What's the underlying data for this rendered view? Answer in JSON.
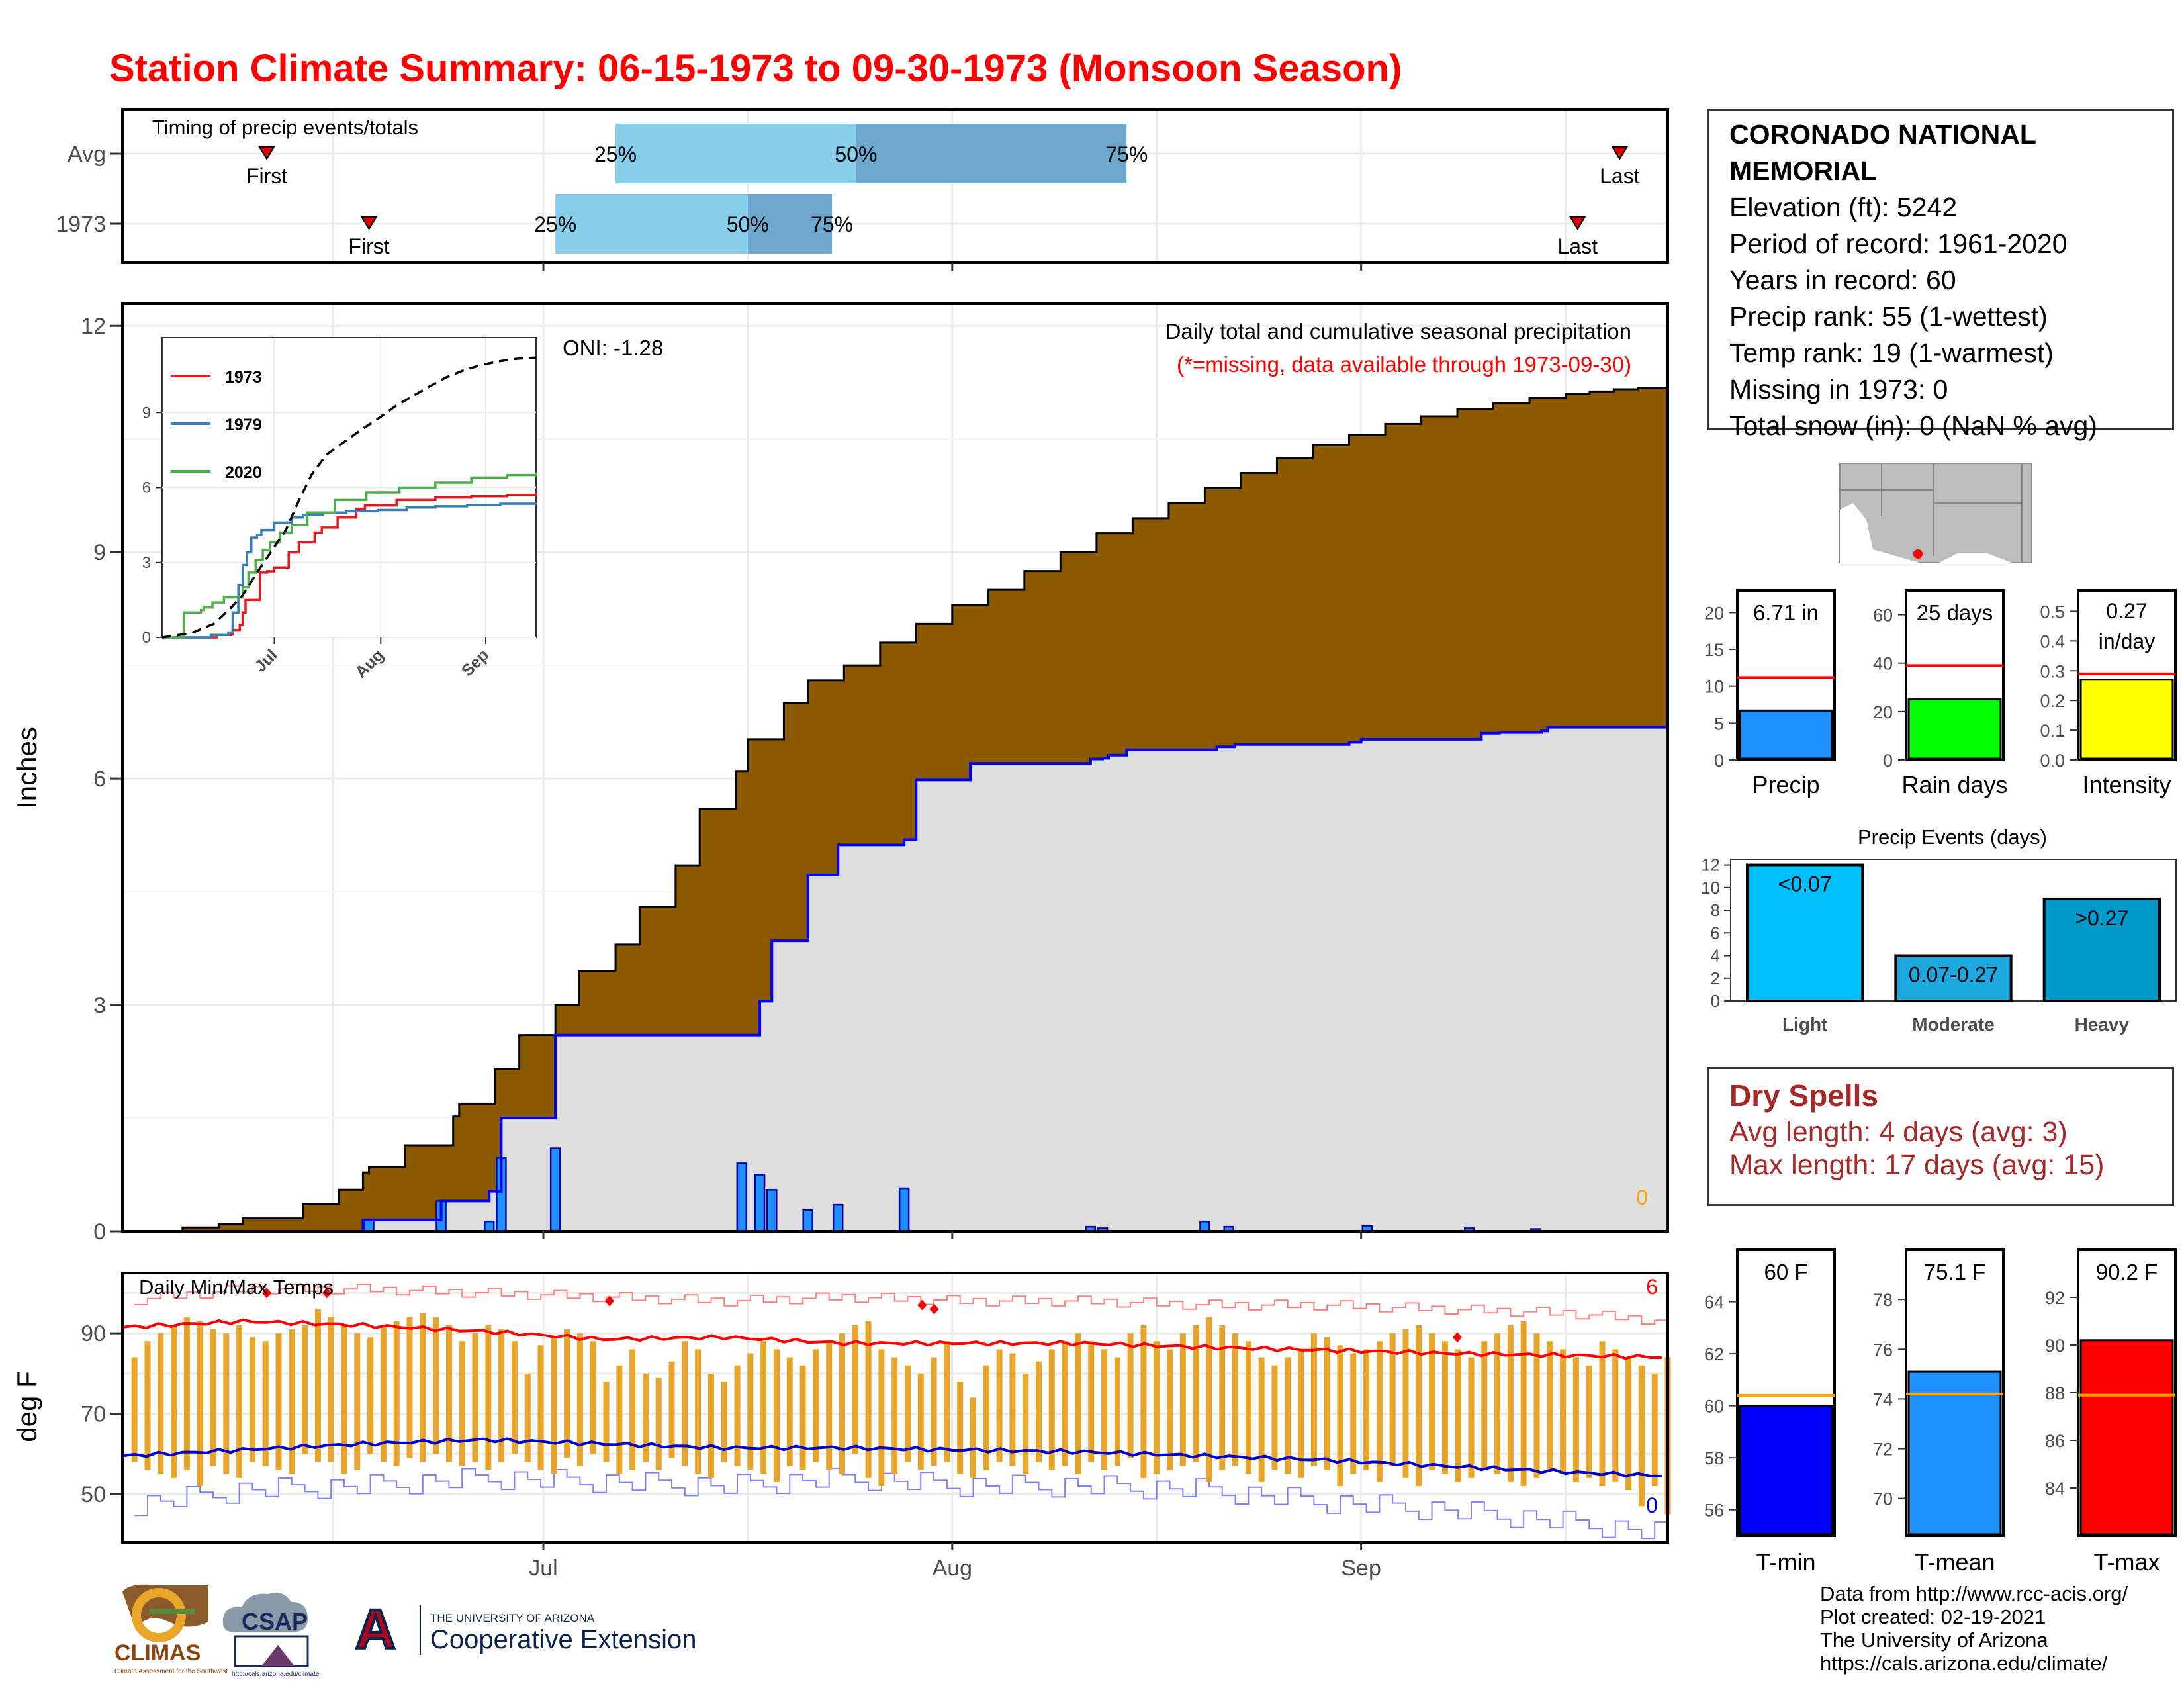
{
  "title": "Station Climate Summary: 06-15-1973 to 09-30-1973 (Monsoon Season)",
  "station": {
    "name": "CORONADO NATIONAL MEMORIAL",
    "lines": [
      "Elevation (ft): 5242",
      "Period of record: 1961-2020",
      "Years in record: 60",
      "Precip rank: 55 (1-wettest)",
      "Temp rank: 19 (1-warmest)",
      "Missing in 1973: 0",
      "Total snow (in): 0 (NaN % avg)"
    ]
  },
  "dry_spells": {
    "heading": "Dry Spells",
    "avg": "Avg length: 4 days (avg: 3)",
    "max": "Max length: 17 days (avg: 15)"
  },
  "credits": [
    "Data from http://www.rcc-acis.org/",
    "Plot created: 02-19-2021",
    "The University of Arizona",
    "https://cals.arizona.edu/climate/"
  ],
  "logos": {
    "climas": "CLIMAS",
    "climas_sub": "Climate Assessment for the Southwest",
    "csap": "CSAP",
    "csap_url": "http://cals.arizona.edu/climate",
    "ua_letter": "A",
    "ua_line1": "THE UNIVERSITY OF ARIZONA",
    "ua_line2": "Cooperative Extension"
  },
  "colors": {
    "title": "#ff0000",
    "cum_obs": "#0000ff",
    "cum_fill": "#dedede",
    "deficit": "#8b5a00",
    "surplus": "#0a7a0a",
    "daily_bar": "#1e90ff",
    "avg_bar_light": "#87ceeb",
    "avg_bar_dark": "#6fa8cf",
    "temp_range": "#e8a52a",
    "tmax_avg": "#ff0000",
    "tmin_avg": "#0000cd",
    "light": "#00bfff",
    "moderate": "#1ea8e0",
    "heavy": "#0099cc"
  },
  "chart_data": [
    {
      "id": "timing",
      "type": "bar",
      "title": "Timing of precip events/totals",
      "rows": [
        "Avg",
        "1973"
      ],
      "day_of_season_axis": "days since Jun 15",
      "avg": {
        "first": 24,
        "p25": 82,
        "p50": 122,
        "p75": 167,
        "last": 249
      },
      "y1973": {
        "first": 41,
        "p25": 72,
        "p50": 104,
        "p75": 118,
        "last": 242
      },
      "labels": {
        "first": "First",
        "last": "Last",
        "p25": "25%",
        "p50": "50%",
        "p75": "75%"
      }
    },
    {
      "id": "precip",
      "type": "area",
      "title": "Daily total and cumulative seasonal precipitation",
      "subtitle": "(*=missing, data available through 1973-09-30)",
      "oni": "ONI: -1.28",
      "ylabel": "Inches",
      "ylim": [
        0,
        12.3
      ],
      "yticks": [
        0,
        3,
        6,
        9,
        12
      ],
      "xticks": [
        "Jul",
        "Aug",
        "Sep"
      ],
      "missing_count": "0",
      "avg_cumulative": {
        "day": [
          0,
          10,
          16,
          20,
          30,
          36,
          40,
          41,
          47,
          55,
          56,
          62,
          66,
          72,
          76,
          82,
          86,
          92,
          96,
          102,
          104,
          110,
          114,
          120,
          126,
          132,
          138,
          144,
          150,
          156,
          162,
          168,
          174,
          180,
          186,
          192,
          198,
          204,
          210,
          216,
          222,
          228,
          234,
          240,
          244,
          248,
          252,
          257
        ],
        "value": [
          0,
          0.05,
          0.1,
          0.17,
          0.36,
          0.55,
          0.78,
          0.85,
          1.14,
          1.52,
          1.69,
          2.15,
          2.6,
          3.0,
          3.45,
          3.8,
          4.3,
          4.85,
          5.6,
          6.1,
          6.52,
          7.0,
          7.3,
          7.5,
          7.8,
          8.05,
          8.3,
          8.5,
          8.75,
          9.0,
          9.25,
          9.45,
          9.65,
          9.85,
          10.05,
          10.25,
          10.42,
          10.55,
          10.7,
          10.8,
          10.9,
          10.98,
          11.05,
          11.1,
          11.13,
          11.16,
          11.18,
          11.2
        ]
      },
      "obs_cumulative": {
        "day": [
          0,
          40,
          51,
          53,
          60,
          61,
          63,
          72,
          103,
          106,
          108,
          114,
          119,
          130,
          132,
          141,
          161,
          163,
          164,
          167,
          182,
          185,
          204,
          206,
          226,
          229,
          236,
          237,
          257
        ],
        "value": [
          0,
          0.15,
          0.15,
          0.4,
          0.4,
          0.53,
          1.5,
          2.6,
          2.6,
          3.05,
          3.85,
          4.72,
          5.12,
          5.19,
          5.98,
          6.2,
          6.26,
          6.27,
          6.31,
          6.38,
          6.42,
          6.45,
          6.48,
          6.52,
          6.6,
          6.61,
          6.63,
          6.68,
          6.71
        ]
      },
      "daily": [
        {
          "day": 41,
          "value": 0.15
        },
        {
          "day": 53,
          "value": 0.4
        },
        {
          "day": 61,
          "value": 0.13
        },
        {
          "day": 63,
          "value": 0.97
        },
        {
          "day": 72,
          "value": 1.1
        },
        {
          "day": 103,
          "value": 0.9
        },
        {
          "day": 106,
          "value": 0.75
        },
        {
          "day": 108,
          "value": 0.55
        },
        {
          "day": 114,
          "value": 0.28
        },
        {
          "day": 119,
          "value": 0.35
        },
        {
          "day": 130,
          "value": 0.57
        },
        {
          "day": 161,
          "value": 0.06
        },
        {
          "day": 163,
          "value": 0.04
        },
        {
          "day": 180,
          "value": 0.13
        },
        {
          "day": 184,
          "value": 0.06
        },
        {
          "day": 207,
          "value": 0.07
        },
        {
          "day": 224,
          "value": 0.04
        },
        {
          "day": 235,
          "value": 0.03
        }
      ]
    },
    {
      "id": "inset",
      "type": "line",
      "ylim": [
        0,
        12
      ],
      "yticks": [
        0,
        3,
        6,
        9
      ],
      "xticks": [
        "Jul",
        "Aug",
        "Sep"
      ],
      "series": [
        {
          "name": "1973",
          "color": "#e41a1c",
          "day": [
            0,
            38,
            48,
            49,
            54,
            56,
            58,
            60,
            68,
            73,
            78,
            88,
            95,
            106,
            111,
            122,
            135,
            141,
            163,
            190,
            215,
            240,
            260
          ],
          "value": [
            0,
            0.1,
            0.12,
            0.3,
            0.5,
            1.0,
            1.5,
            1.5,
            2.6,
            2.65,
            2.8,
            3.4,
            3.8,
            4.2,
            4.4,
            4.8,
            5.15,
            5.28,
            5.5,
            5.6,
            5.65,
            5.7,
            5.8
          ]
        },
        {
          "name": "1979",
          "color": "#377eb8",
          "day": [
            0,
            34,
            46,
            49,
            53,
            56,
            59,
            62,
            66,
            69,
            78,
            90,
            98,
            112,
            128,
            150,
            170,
            190,
            212,
            235,
            260
          ],
          "value": [
            0,
            0.1,
            0.2,
            1.0,
            2.1,
            2.9,
            3.4,
            4.0,
            4.1,
            4.3,
            4.6,
            4.8,
            4.9,
            5.0,
            5.05,
            5.1,
            5.2,
            5.25,
            5.3,
            5.35,
            5.4
          ]
        },
        {
          "name": "2020",
          "color": "#4daf4a",
          "day": [
            0,
            15,
            27,
            29,
            35,
            43,
            51,
            56,
            60,
            65,
            70,
            75,
            82,
            90,
            101,
            120,
            142,
            165,
            190,
            215,
            240,
            260
          ],
          "value": [
            0,
            1.0,
            1.1,
            1.2,
            1.4,
            1.6,
            1.6,
            2.0,
            2.6,
            3.1,
            3.5,
            3.8,
            4.2,
            4.5,
            5.0,
            5.5,
            5.8,
            6.0,
            6.2,
            6.4,
            6.5,
            6.6
          ]
        },
        {
          "name": "avg",
          "color": "#000000",
          "dashed": true,
          "day": [
            0,
            20,
            36,
            47,
            56,
            66,
            76,
            86,
            96,
            104,
            114,
            126,
            138,
            150,
            162,
            174,
            186,
            198,
            210,
            222,
            234,
            246,
            260
          ],
          "value": [
            0,
            0.17,
            0.55,
            1.14,
            1.69,
            2.6,
            3.45,
            4.3,
            5.6,
            6.52,
            7.3,
            7.8,
            8.3,
            8.75,
            9.25,
            9.65,
            10.05,
            10.42,
            10.7,
            10.9,
            11.05,
            11.15,
            11.2
          ]
        }
      ]
    },
    {
      "id": "temps",
      "type": "bar",
      "title": "Daily Min/Max Temps",
      "ylabel": "deg F",
      "ylim": [
        38,
        105
      ],
      "yticks": [
        50,
        70,
        90
      ],
      "xticks": [
        "Jul",
        "Aug",
        "Sep"
      ],
      "record_high_count": "6",
      "record_low_count": "0",
      "tmax": [
        84,
        88,
        90,
        92,
        94,
        93,
        91,
        90,
        92,
        89,
        88,
        90,
        91,
        92,
        96,
        94,
        92,
        90,
        89,
        92,
        93,
        94,
        95,
        94,
        92,
        88,
        90,
        92,
        91,
        88,
        80,
        87,
        89,
        91,
        90,
        88,
        78,
        82,
        86,
        80,
        79,
        83,
        88,
        86,
        80,
        78,
        82,
        85,
        88,
        86,
        84,
        82,
        86,
        88,
        90,
        92,
        93,
        86,
        84,
        82,
        80,
        84,
        88,
        78,
        74,
        82,
        86,
        85,
        80,
        83,
        86,
        88,
        90,
        88,
        86,
        84,
        90,
        92,
        88,
        86,
        90,
        92,
        94,
        92,
        90,
        88,
        84,
        82,
        84,
        86,
        90,
        89,
        87,
        85,
        86,
        88,
        90,
        91,
        92,
        90,
        88,
        86,
        84,
        88,
        90,
        92,
        93,
        90,
        88,
        86,
        84,
        82,
        88,
        86,
        84,
        82,
        80,
        84
      ],
      "tmin": [
        58,
        56,
        55,
        54,
        56,
        52,
        57,
        55,
        54,
        58,
        57,
        56,
        55,
        60,
        58,
        58,
        55,
        56,
        60,
        58,
        57,
        59,
        58,
        60,
        58,
        57,
        58,
        56,
        58,
        60,
        58,
        56,
        55,
        59,
        57,
        60,
        58,
        55,
        56,
        58,
        56,
        59,
        57,
        55,
        54,
        58,
        57,
        56,
        55,
        53,
        57,
        56,
        58,
        56,
        55,
        60,
        54,
        52,
        55,
        58,
        56,
        57,
        58,
        55,
        54,
        56,
        58,
        57,
        55,
        58,
        56,
        57,
        55,
        58,
        56,
        57,
        59,
        54,
        55,
        56,
        57,
        58,
        53,
        56,
        57,
        55,
        53,
        56,
        55,
        54,
        57,
        56,
        52,
        55,
        56,
        53,
        57,
        54,
        52,
        56,
        55,
        53,
        54,
        56,
        55,
        53,
        52,
        54,
        56,
        55,
        53,
        54,
        52,
        53,
        51,
        47,
        52,
        45
      ],
      "record_high_days": [
        24,
        34,
        81,
        133,
        135,
        222
      ],
      "record_high_values": [
        100,
        100,
        98,
        97,
        96,
        89
      ],
      "avg_tmax": {
        "day": [
          0,
          20,
          40,
          60,
          80,
          100,
          120,
          140,
          160,
          180,
          200,
          220,
          240,
          257
        ],
        "value": [
          91.5,
          93,
          92,
          90.5,
          88.5,
          89,
          87.5,
          87.5,
          87.5,
          86.5,
          85.8,
          85,
          84.5,
          84
        ]
      },
      "avg_tmin": {
        "day": [
          0,
          20,
          40,
          60,
          80,
          100,
          120,
          140,
          160,
          180,
          200,
          220,
          240,
          257
        ],
        "value": [
          59.5,
          61,
          62.5,
          63.5,
          62.5,
          61.5,
          61.5,
          61,
          60.5,
          59.5,
          58.5,
          57,
          55.5,
          54.5
        ]
      },
      "rec_max": {
        "day": [
          0,
          20,
          40,
          60,
          80,
          100,
          120,
          140,
          160,
          180,
          200,
          220,
          240,
          257
        ],
        "value": [
          98,
          101,
          101,
          100,
          99,
          98,
          99,
          98,
          98,
          97,
          97,
          96,
          95,
          93
        ]
      },
      "rec_min": {
        "day": [
          0,
          20,
          40,
          60,
          80,
          100,
          120,
          140,
          160,
          180,
          200,
          220,
          240,
          257
        ],
        "value": [
          47,
          51,
          52,
          54,
          53,
          52,
          54,
          52,
          52,
          51,
          48,
          46,
          43,
          40
        ]
      }
    },
    {
      "id": "precip_summary",
      "type": "bar",
      "panels": [
        {
          "label": "Precip",
          "value": 6.71,
          "value_label": "6.71 in",
          "avg": 11.2,
          "ylim": [
            0,
            23
          ],
          "yticks": [
            0,
            5,
            10,
            15,
            20
          ],
          "color": "#1e90ff"
        },
        {
          "label": "Rain days",
          "value": 25,
          "value_label": "25 days",
          "avg": 39,
          "ylim": [
            0,
            70
          ],
          "yticks": [
            0,
            20,
            40,
            60
          ],
          "color": "#00ff00"
        },
        {
          "label": "Intensity",
          "value": 0.27,
          "value_label": "0.27 in/day",
          "avg": 0.29,
          "ylim": [
            0,
            0.57
          ],
          "yticks": [
            0.0,
            0.1,
            0.2,
            0.3,
            0.4,
            0.5
          ],
          "color": "#ffff00"
        }
      ]
    },
    {
      "id": "precip_events",
      "type": "bar",
      "title": "Precip Events (days)",
      "categories": [
        "Light",
        "Moderate",
        "Heavy"
      ],
      "values": [
        12,
        4,
        9
      ],
      "value_labels": [
        "<0.07",
        "0.07-0.27",
        ">0.27"
      ],
      "ylim": [
        0,
        12.5
      ],
      "yticks": [
        0,
        2,
        4,
        6,
        8,
        10,
        12
      ]
    },
    {
      "id": "temp_summary",
      "type": "bar",
      "panels": [
        {
          "label": "T-min",
          "value": 60,
          "value_label": "60 F",
          "avg": 60.4,
          "ylim": [
            55,
            66
          ],
          "yticks": [
            56,
            58,
            60,
            62,
            64
          ],
          "color": "#0000ff"
        },
        {
          "label": "T-mean",
          "value": 75.1,
          "value_label": "75.1 F",
          "avg": 74.2,
          "ylim": [
            68.5,
            80
          ],
          "yticks": [
            70,
            72,
            74,
            76,
            78
          ],
          "color": "#1e90ff"
        },
        {
          "label": "T-max",
          "value": 90.2,
          "value_label": "90.2 F",
          "avg": 87.9,
          "ylim": [
            82,
            94
          ],
          "yticks": [
            84,
            86,
            88,
            90,
            92
          ],
          "color": "#ff0000"
        }
      ]
    }
  ]
}
